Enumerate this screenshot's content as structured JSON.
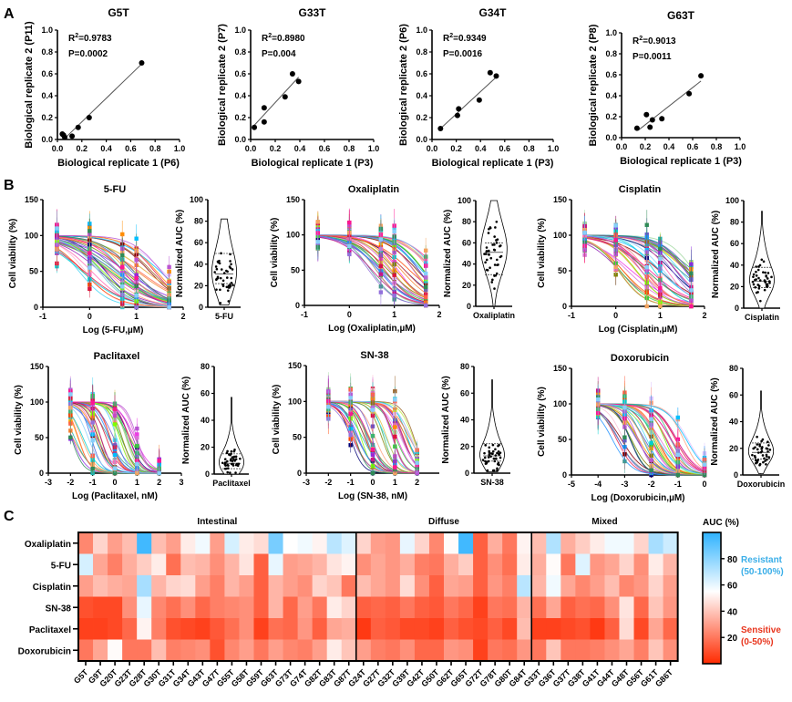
{
  "panel_labels": {
    "a": "A",
    "b": "B",
    "c": "C"
  },
  "chart_data": [
    {
      "id": "scatter_G5T",
      "type": "scatter",
      "title": "G5T",
      "xlabel": "Biological replicate 1 (P6)",
      "ylabel": "Biological replicate 2 (P11)",
      "xlim": [
        0,
        1.0
      ],
      "ylim": [
        0,
        1.0
      ],
      "xticks": [
        "0.0",
        "0.2",
        "0.4",
        "0.6",
        "0.8",
        "1.0"
      ],
      "yticks": [
        "0.0",
        "0.2",
        "0.4",
        "0.6",
        "0.8",
        "1.0"
      ],
      "r2": "R",
      "r2_sup": "2",
      "r2_value": "=0.9783",
      "p_text": "P=0.0002",
      "x": [
        0.04,
        0.05,
        0.06,
        0.12,
        0.17,
        0.26,
        0.69
      ],
      "y": [
        0.05,
        0.04,
        0.02,
        0.03,
        0.11,
        0.2,
        0.7
      ],
      "fit": [
        [
          0.06,
          0.01
        ],
        [
          0.69,
          0.69
        ]
      ]
    },
    {
      "id": "scatter_G33T",
      "type": "scatter",
      "title": "G33T",
      "xlabel": "Biological replicate 1 (P3)",
      "ylabel": "Biological replicate 2 (P7)",
      "xlim": [
        0,
        1.0
      ],
      "ylim": [
        0,
        1.0
      ],
      "xticks": [
        "0.0",
        "0.2",
        "0.4",
        "0.6",
        "0.8",
        "1.0"
      ],
      "yticks": [
        "0.0",
        "0.2",
        "0.4",
        "0.6",
        "0.8",
        "1.0"
      ],
      "r2": "R",
      "r2_sup": "2",
      "r2_value": "=0.8980",
      "p_text": "P=0.004",
      "x": [
        0.03,
        0.11,
        0.11,
        0.28,
        0.34,
        0.39
      ],
      "y": [
        0.11,
        0.29,
        0.16,
        0.39,
        0.6,
        0.53
      ],
      "fit": [
        [
          0.03,
          0.13
        ],
        [
          0.39,
          0.57
        ]
      ]
    },
    {
      "id": "scatter_G34T",
      "type": "scatter",
      "title": "G34T",
      "xlabel": "Biological replicate 1 (P3)",
      "ylabel": "Biological replicate 2 (P6)",
      "xlim": [
        0,
        1.0
      ],
      "ylim": [
        0,
        1.0
      ],
      "xticks": [
        "0.0",
        "0.2",
        "0.4",
        "0.6",
        "0.8",
        "1.0"
      ],
      "yticks": [
        "0.0",
        "0.2",
        "0.4",
        "0.6",
        "0.8",
        "1.0"
      ],
      "r2": "R",
      "r2_sup": "2",
      "r2_value": "=0.9349",
      "p_text": "P=0.0016",
      "x": [
        0.07,
        0.22,
        0.21,
        0.39,
        0.48,
        0.53
      ],
      "y": [
        0.1,
        0.28,
        0.22,
        0.36,
        0.61,
        0.58
      ],
      "fit": [
        [
          0.07,
          0.1
        ],
        [
          0.53,
          0.57
        ]
      ]
    },
    {
      "id": "scatter_G63T",
      "type": "scatter",
      "title": "G63T",
      "xlabel": "Biological replicate 1 (P3)",
      "ylabel": "Biological replicate 2 (P8)",
      "xlim": [
        0,
        1.0
      ],
      "ylim": [
        0,
        1.0
      ],
      "xticks": [
        "0.0",
        "0.2",
        "0.4",
        "0.6",
        "0.8",
        "1.0"
      ],
      "yticks": [
        "0.0",
        "0.2",
        "0.4",
        "0.6",
        "0.8",
        "1.0"
      ],
      "r2": "R",
      "r2_sup": "2",
      "r2_value": "=0.9013",
      "p_text": "P=0.0011",
      "x": [
        0.13,
        0.21,
        0.24,
        0.26,
        0.34,
        0.57,
        0.67
      ],
      "y": [
        0.09,
        0.22,
        0.1,
        0.17,
        0.18,
        0.42,
        0.59
      ],
      "fit": [
        [
          0.14,
          0.07
        ],
        [
          0.67,
          0.54
        ]
      ]
    },
    {
      "id": "dose_5FU",
      "type": "line",
      "title": "5-FU",
      "xlabel": "Log (5-FU,µM)",
      "ylabel": "Cell viability (%)",
      "xlim": [
        -1,
        2
      ],
      "ylim": [
        0,
        150
      ],
      "xticks": [
        "-1",
        "0",
        "1",
        "2"
      ],
      "yticks": [
        "0",
        "50",
        "100",
        "150"
      ],
      "dose_x": [
        -0.7,
        0,
        0.7,
        1,
        1.7
      ],
      "log_ic50_range": [
        -0.3,
        1.6
      ],
      "hill_range": [
        0.8,
        1.4
      ],
      "n_curves": 41
    },
    {
      "id": "violin_5FU",
      "type": "violin",
      "category": "5-FU",
      "ylabel": "Normalized AUC (%)",
      "ylim": [
        0,
        100
      ],
      "yticks": [
        "0",
        "20",
        "40",
        "60",
        "80",
        "100"
      ],
      "min": 2,
      "max": 82,
      "median": 31,
      "q1": 22,
      "q3": 50
    },
    {
      "id": "dose_Oxaliplatin",
      "type": "line",
      "title": "Oxaliplatin",
      "xlabel": "Log (Oxaliplatin,µM)",
      "ylabel": "Cell viability (%)",
      "xlim": [
        -1,
        2
      ],
      "ylim": [
        0,
        150
      ],
      "xticks": [
        "-1",
        "0",
        "1",
        "2"
      ],
      "yticks": [
        "0",
        "50",
        "100",
        "150"
      ],
      "dose_x": [
        -0.7,
        0,
        0.7,
        1,
        1.7
      ],
      "log_ic50_range": [
        0.4,
        2.0
      ],
      "hill_range": [
        1.0,
        1.6
      ],
      "n_curves": 41
    },
    {
      "id": "violin_Oxaliplatin",
      "type": "violin",
      "category": "Oxaliplatin",
      "ylabel": "Normalized AUC (%)",
      "ylim": [
        0,
        100
      ],
      "yticks": [
        "0",
        "20",
        "40",
        "60",
        "80",
        "100"
      ],
      "min": 0,
      "max": 100,
      "median": 51,
      "q1": 30,
      "q3": 60
    },
    {
      "id": "dose_Cisplatin",
      "type": "line",
      "title": "Cisplatin",
      "xlabel": "Log (Cisplatin,µM)",
      "ylabel": "Cell viability (%)",
      "xlim": [
        -1,
        2
      ],
      "ylim": [
        0,
        150
      ],
      "xticks": [
        "-1",
        "0",
        "1",
        "2"
      ],
      "yticks": [
        "0",
        "50",
        "100",
        "150"
      ],
      "dose_x": [
        -0.7,
        0,
        0.7,
        1,
        1.7
      ],
      "log_ic50_range": [
        0.0,
        1.8
      ],
      "hill_range": [
        0.9,
        1.5
      ],
      "n_curves": 41
    },
    {
      "id": "violin_Cisplatin",
      "type": "violin",
      "category": "Cisplatin",
      "ylabel": "Normalized AUC (%)",
      "ylim": [
        0,
        100
      ],
      "yticks": [
        "0",
        "20",
        "40",
        "60",
        "80",
        "100"
      ],
      "min": 0,
      "max": 90,
      "median": 25,
      "q1": 19,
      "q3": 38
    },
    {
      "id": "dose_Paclitaxel",
      "type": "line",
      "title": "Paclitaxel",
      "xlabel": "Log (Paclitaxel, nM)",
      "ylabel": "Cell viability (%)",
      "xlim": [
        -3,
        3
      ],
      "ylim": [
        0,
        150
      ],
      "xticks": [
        "-3",
        "-2",
        "-1",
        "0",
        "1",
        "2",
        "3"
      ],
      "yticks": [
        "0",
        "50",
        "100",
        "150"
      ],
      "dose_x": [
        -2,
        -1,
        0,
        1,
        2
      ],
      "log_ic50_range": [
        -2.0,
        1.0
      ],
      "hill_range": [
        1.0,
        1.8
      ],
      "n_curves": 41
    },
    {
      "id": "violin_Paclitaxel",
      "type": "violin",
      "category": "Paclitaxel",
      "ylabel": "Normalized AUC (%)",
      "ylim": [
        0,
        80
      ],
      "yticks": [
        "0",
        "20",
        "40",
        "60",
        "80"
      ],
      "min": 0,
      "max": 57,
      "median": 8,
      "q1": 4,
      "q3": 15
    },
    {
      "id": "dose_SN38",
      "type": "line",
      "title": "SN-38",
      "xlabel": "Log (SN-38, nM)",
      "ylabel": "Cell viability (%)",
      "xlim": [
        -3,
        3
      ],
      "ylim": [
        0,
        150
      ],
      "xticks": [
        "-3",
        "-2",
        "-1",
        "0",
        "1",
        "2"
      ],
      "yticks": [
        "0",
        "50",
        "100",
        "150"
      ],
      "dose_x": [
        -2,
        -1,
        0,
        1,
        2
      ],
      "log_ic50_range": [
        -1.2,
        1.9
      ],
      "hill_range": [
        1.0,
        1.8
      ],
      "n_curves": 41
    },
    {
      "id": "violin_SN38",
      "type": "violin",
      "category": "SN-38",
      "ylabel": "Normalized AUC (%)",
      "ylim": [
        0,
        80
      ],
      "yticks": [
        "0",
        "20",
        "40",
        "60",
        "80"
      ],
      "min": 1,
      "max": 70,
      "median": 13,
      "q1": 9,
      "q3": 22
    },
    {
      "id": "dose_Doxorubicin",
      "type": "line",
      "title": "Doxorubicin",
      "xlabel": "Log (Doxorubicin,µM)",
      "ylabel": "Cell viability (%)",
      "xlim": [
        -5,
        0
      ],
      "ylim": [
        0,
        150
      ],
      "xticks": [
        "-5",
        "-4",
        "-3",
        "-2",
        "-1",
        "0"
      ],
      "yticks": [
        "0",
        "50",
        "100",
        "150"
      ],
      "dose_x": [
        -4,
        -3,
        -2,
        -1,
        0
      ],
      "log_ic50_range": [
        -3.5,
        -0.6
      ],
      "hill_range": [
        1.0,
        1.6
      ],
      "n_curves": 41
    },
    {
      "id": "violin_Doxorubicin",
      "type": "violin",
      "category": "Doxorubicin",
      "ylabel": "Normalized AUC (%)",
      "ylim": [
        0,
        80
      ],
      "yticks": [
        "0",
        "20",
        "40",
        "60",
        "80"
      ],
      "min": 1,
      "max": 63,
      "median": 17,
      "q1": 12,
      "q3": 24
    },
    {
      "id": "heatmap_auc",
      "type": "heatmap",
      "rows": [
        "Oxaliplatin",
        "5-FU",
        "Cisplatin",
        "SN-38",
        "Paclitaxel",
        "Doxorubicin"
      ],
      "groups": [
        {
          "name": "Intestinal",
          "columns": [
            "G5T",
            "G9T",
            "G20T",
            "G23T",
            "G28T",
            "G30T",
            "G31T",
            "G34T",
            "G43T",
            "G47T",
            "G55T",
            "G58T",
            "G59T",
            "G63T",
            "G73T",
            "G74T",
            "G82T",
            "G83T",
            "G87T"
          ]
        },
        {
          "name": "Diffuse",
          "columns": [
            "G24T",
            "G27T",
            "G32T",
            "G39T",
            "G42T",
            "G50T",
            "G62T",
            "G65T",
            "G72T",
            "G78T",
            "G80T",
            "G84T"
          ]
        },
        {
          "name": "Mixed",
          "columns": [
            "G33T",
            "G36T",
            "G37T",
            "G38T",
            "G41T",
            "G44T",
            "G48T",
            "G56T",
            "G61T",
            "G86T"
          ]
        }
      ],
      "values": [
        [
          24,
          44,
          30,
          38,
          96,
          38,
          30,
          50,
          58,
          30,
          64,
          50,
          46,
          84,
          55,
          58,
          52,
          70,
          62,
          44,
          30,
          28,
          60,
          44,
          24,
          54,
          96,
          14,
          34,
          20,
          52,
          38,
          72,
          34,
          42,
          50,
          58,
          58,
          44,
          74,
          66
        ],
        [
          64,
          32,
          22,
          34,
          42,
          50,
          18,
          38,
          36,
          26,
          36,
          48,
          14,
          60,
          30,
          32,
          36,
          48,
          52,
          26,
          32,
          28,
          34,
          22,
          20,
          34,
          42,
          14,
          26,
          18,
          50,
          34,
          54,
          20,
          62,
          28,
          32,
          44,
          26,
          50,
          36
        ],
        [
          30,
          38,
          34,
          32,
          74,
          36,
          44,
          46,
          30,
          22,
          36,
          30,
          14,
          36,
          30,
          26,
          44,
          40,
          20,
          38,
          32,
          28,
          46,
          26,
          14,
          32,
          30,
          14,
          28,
          22,
          70,
          36,
          58,
          32,
          24,
          30,
          38,
          24,
          28,
          44,
          30
        ],
        [
          10,
          8,
          8,
          26,
          60,
          24,
          18,
          26,
          16,
          22,
          24,
          26,
          14,
          36,
          16,
          30,
          20,
          50,
          44,
          14,
          16,
          14,
          20,
          14,
          12,
          20,
          16,
          6,
          20,
          18,
          36,
          18,
          32,
          14,
          18,
          16,
          26,
          48,
          16,
          40,
          28
        ],
        [
          6,
          6,
          8,
          16,
          52,
          22,
          10,
          8,
          6,
          12,
          18,
          26,
          6,
          18,
          16,
          28,
          14,
          32,
          34,
          4,
          14,
          12,
          8,
          8,
          6,
          14,
          10,
          8,
          14,
          8,
          38,
          6,
          6,
          8,
          10,
          4,
          14,
          46,
          8,
          32,
          16
        ],
        [
          20,
          32,
          54,
          20,
          20,
          38,
          22,
          24,
          26,
          10,
          24,
          30,
          20,
          30,
          24,
          22,
          30,
          50,
          40,
          30,
          22,
          20,
          26,
          16,
          16,
          28,
          26,
          6,
          20,
          18,
          28,
          20,
          40,
          20,
          20,
          22,
          26,
          32,
          22,
          40,
          26
        ]
      ],
      "colorbar": {
        "title": "AUC (%)",
        "ticks": [
          "20",
          "40",
          "60",
          "80"
        ],
        "range": [
          0,
          100
        ],
        "low_color": "#ff2a00",
        "mid_color": "#ffffff",
        "high_color": "#2eb2ff"
      },
      "annotations": {
        "resistant": "Resistant",
        "resistant_range": "(50-100%)",
        "resistant_color": "#3aaee8",
        "sensitive": "Sensitive",
        "sensitive_range": "(0-50%)",
        "sensitive_color": "#e8341c"
      }
    }
  ]
}
